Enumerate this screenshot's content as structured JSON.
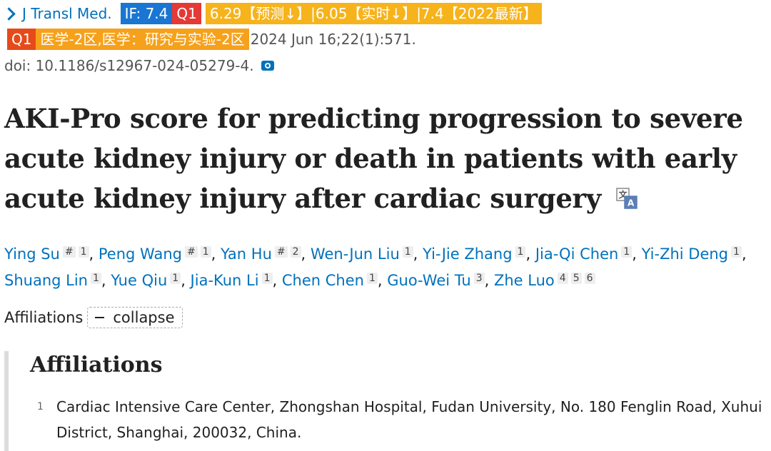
{
  "header": {
    "journal": "J Transl Med.",
    "if_badge": "IF: 7.4",
    "q1_badge": "Q1",
    "prediction_badge": "6.29【预测↓】|6.05【实时↓】|7.4【2022最新】",
    "q1_badge2": "Q1",
    "cas_badge": "医学-2区,医学：研究与实验-2区",
    "citation": "2024 Jun 16;22(1):571.",
    "doi": "doi: 10.1186/s12967-024-05279-4."
  },
  "title": "AKI-Pro score for predicting progression to severe acute kidney injury or death in patients with early acute kidney injury after cardiac surgery",
  "authors": [
    {
      "name": "Ying Su",
      "marks": [
        "#",
        "1"
      ]
    },
    {
      "name": "Peng Wang",
      "marks": [
        "#",
        "1"
      ]
    },
    {
      "name": "Yan Hu",
      "marks": [
        "#",
        "2"
      ]
    },
    {
      "name": "Wen-Jun Liu",
      "marks": [
        "1"
      ]
    },
    {
      "name": "Yi-Jie Zhang",
      "marks": [
        "1"
      ]
    },
    {
      "name": "Jia-Qi Chen",
      "marks": [
        "1"
      ]
    },
    {
      "name": "Yi-Zhi Deng",
      "marks": [
        "1"
      ]
    },
    {
      "name": "Shuang Lin",
      "marks": [
        "1"
      ]
    },
    {
      "name": "Yue Qiu",
      "marks": [
        "1"
      ]
    },
    {
      "name": "Jia-Kun Li",
      "marks": [
        "1"
      ]
    },
    {
      "name": "Chen Chen",
      "marks": [
        "1"
      ]
    },
    {
      "name": "Guo-Wei Tu",
      "marks": [
        "3"
      ]
    },
    {
      "name": "Zhe Luo",
      "marks": [
        "4",
        "5",
        "6"
      ]
    }
  ],
  "affiliations_toggle": {
    "label": "Affiliations",
    "button": "collapse"
  },
  "affiliations": {
    "heading": "Affiliations",
    "items": [
      {
        "num": "1",
        "text": "Cardiac Intensive Care Center, Zhongshan Hospital, Fudan University, No. 180 Fenglin Road, Xuhui District, Shanghai, 200032, China."
      }
    ]
  },
  "icons": [
    "chevron-right-icon",
    "camera-icon",
    "translate-icon",
    "minus-icon"
  ],
  "colors": {
    "link": "#0071bc",
    "if_badge": "#1976d2",
    "q1_badge": "#e53935",
    "pred_badge": "#f6b31b",
    "cas_badge": "#f6a11b"
  }
}
